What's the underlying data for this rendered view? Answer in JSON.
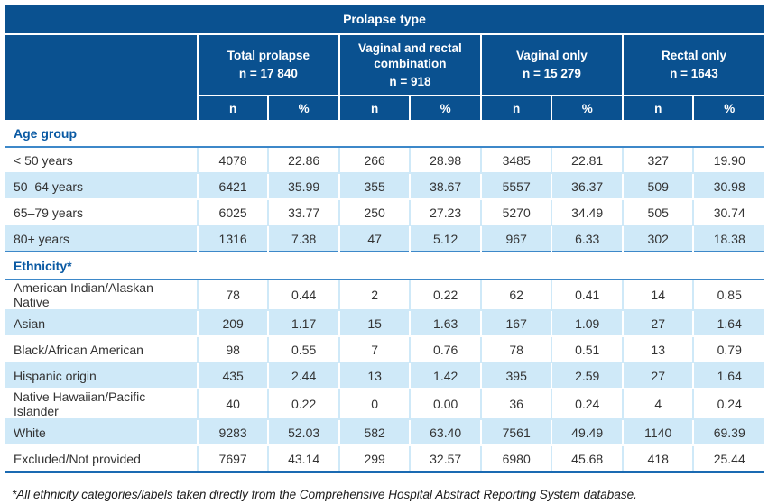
{
  "colors": {
    "header_blue": "#0a5190",
    "shaded_row_blue": "#cfe9f8",
    "section_line_blue": "#3d88c9",
    "table_bottom_line_blue": "#1a6ab2",
    "section_text_blue": "#0959a3"
  },
  "table": {
    "title": "Prolapse type",
    "groups": [
      {
        "label": "Total prolapse",
        "n_label": "n = 17 840"
      },
      {
        "label": "Vaginal and rectal combination",
        "n_label": "n = 918"
      },
      {
        "label": "Vaginal only",
        "n_label": "n = 15 279"
      },
      {
        "label": "Rectal only",
        "n_label": "n = 1643"
      }
    ],
    "subheaders": [
      "n",
      "%"
    ],
    "sections": [
      {
        "label": "Age group",
        "rows": [
          {
            "label": "< 50 years",
            "values": [
              "4078",
              "22.86",
              "266",
              "28.98",
              "3485",
              "22.81",
              "327",
              "19.90"
            ]
          },
          {
            "label": "50–64 years",
            "values": [
              "6421",
              "35.99",
              "355",
              "38.67",
              "5557",
              "36.37",
              "509",
              "30.98"
            ]
          },
          {
            "label": "65–79 years",
            "values": [
              "6025",
              "33.77",
              "250",
              "27.23",
              "5270",
              "34.49",
              "505",
              "30.74"
            ]
          },
          {
            "label": "80+ years",
            "values": [
              "1316",
              "7.38",
              "47",
              "5.12",
              "967",
              "6.33",
              "302",
              "18.38"
            ]
          }
        ]
      },
      {
        "label": "Ethnicity*",
        "rows": [
          {
            "label": "American Indian/Alaskan Native",
            "values": [
              "78",
              "0.44",
              "2",
              "0.22",
              "62",
              "0.41",
              "14",
              "0.85"
            ]
          },
          {
            "label": "Asian",
            "values": [
              "209",
              "1.17",
              "15",
              "1.63",
              "167",
              "1.09",
              "27",
              "1.64"
            ]
          },
          {
            "label": "Black/African American",
            "values": [
              "98",
              "0.55",
              "7",
              "0.76",
              "78",
              "0.51",
              "13",
              "0.79"
            ]
          },
          {
            "label": "Hispanic origin",
            "values": [
              "435",
              "2.44",
              "13",
              "1.42",
              "395",
              "2.59",
              "27",
              "1.64"
            ]
          },
          {
            "label": "Native Hawaiian/Pacific Islander",
            "values": [
              "40",
              "0.22",
              "0",
              "0.00",
              "36",
              "0.24",
              "4",
              "0.24"
            ]
          },
          {
            "label": "White",
            "values": [
              "9283",
              "52.03",
              "582",
              "63.40",
              "7561",
              "49.49",
              "1140",
              "69.39"
            ]
          },
          {
            "label": "Excluded/Not provided",
            "values": [
              "7697",
              "43.14",
              "299",
              "32.57",
              "6980",
              "45.68",
              "418",
              "25.44"
            ]
          }
        ]
      }
    ],
    "footnote": "*All ethnicity categories/labels taken directly from the Comprehensive Hospital Abstract Reporting System database."
  }
}
